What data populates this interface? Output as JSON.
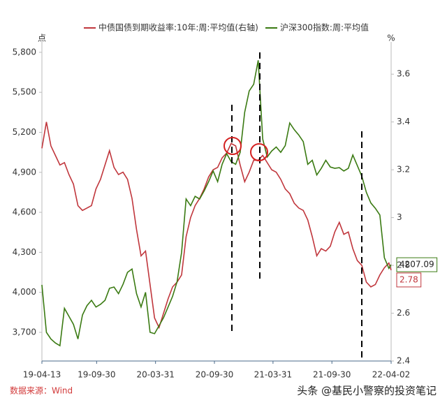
{
  "chart_data": {
    "type": "line",
    "ylabel": "点",
    "y2label": "%",
    "source": "数据来源：Wind",
    "watermark": "头条 @基民小警察的投资笔记",
    "x": [
      "19-04-13",
      "19-04-27",
      "19-05-11",
      "19-05-25",
      "19-06-08",
      "19-06-22",
      "19-07-06",
      "19-07-20",
      "19-08-03",
      "19-08-17",
      "19-08-31",
      "19-09-14",
      "19-09-28",
      "19-10-12",
      "19-10-26",
      "19-11-09",
      "19-11-23",
      "19-12-07",
      "19-12-21",
      "20-01-04",
      "20-01-18",
      "20-02-01",
      "20-02-15",
      "20-02-29",
      "20-03-14",
      "20-03-28",
      "20-04-11",
      "20-04-25",
      "20-05-09",
      "20-05-23",
      "20-06-06",
      "20-06-20",
      "20-07-04",
      "20-07-18",
      "20-08-01",
      "20-08-15",
      "20-08-29",
      "20-09-12",
      "20-09-26",
      "20-10-10",
      "20-10-24",
      "20-11-07",
      "20-11-21",
      "20-12-05",
      "20-12-19",
      "21-01-02",
      "21-01-16",
      "21-01-30",
      "21-02-13",
      "21-02-27",
      "21-03-13",
      "21-03-27",
      "21-04-10",
      "21-04-24",
      "21-05-08",
      "21-05-22",
      "21-06-05",
      "21-06-19",
      "21-07-03",
      "21-07-17",
      "21-07-31",
      "21-08-14",
      "21-08-28",
      "21-09-11",
      "21-09-25",
      "21-10-09",
      "21-10-23",
      "21-11-06",
      "21-11-20",
      "21-12-04",
      "21-12-18",
      "22-01-01",
      "22-01-15",
      "22-01-29",
      "22-02-12",
      "22-02-26",
      "22-03-12",
      "22-03-26",
      "22-04-02"
    ],
    "series": [
      {
        "name": "中债国债到期收益率:10年:周:平均值(右轴)",
        "color": "#c0363c",
        "axis": "y2",
        "values": [
          3.29,
          3.4,
          3.3,
          3.26,
          3.22,
          3.23,
          3.18,
          3.14,
          3.05,
          3.03,
          3.04,
          3.05,
          3.12,
          3.16,
          3.22,
          3.28,
          3.21,
          3.18,
          3.19,
          3.16,
          3.08,
          2.95,
          2.84,
          2.86,
          2.72,
          2.58,
          2.54,
          2.6,
          2.66,
          2.71,
          2.73,
          2.76,
          2.92,
          3.0,
          3.05,
          3.08,
          3.12,
          3.17,
          3.2,
          3.21,
          3.25,
          3.27,
          3.31,
          3.3,
          3.22,
          3.15,
          3.19,
          3.24,
          3.24,
          3.26,
          3.23,
          3.2,
          3.19,
          3.16,
          3.12,
          3.1,
          3.06,
          3.04,
          3.03,
          2.99,
          2.92,
          2.84,
          2.87,
          2.86,
          2.88,
          2.94,
          2.98,
          2.93,
          2.94,
          2.87,
          2.82,
          2.8,
          2.73,
          2.71,
          2.72,
          2.76,
          2.79,
          2.81,
          2.78
        ]
      },
      {
        "name": "沪深300指数:周:平均值",
        "color": "#3a7a12",
        "values": [
          4056,
          3700,
          3650,
          3620,
          3600,
          3880,
          3820,
          3760,
          3650,
          3830,
          3900,
          3940,
          3890,
          3910,
          3940,
          4030,
          4040,
          3990,
          4060,
          4150,
          4175,
          3990,
          3890,
          4000,
          3700,
          3690,
          3750,
          3810,
          3890,
          3970,
          4080,
          4300,
          4700,
          4650,
          4720,
          4700,
          4760,
          4830,
          4910,
          4830,
          4960,
          5040,
          4980,
          4960,
          5050,
          5350,
          5510,
          5560,
          5740,
          5150,
          5015,
          5060,
          5090,
          5050,
          5100,
          5270,
          5220,
          5180,
          5130,
          4960,
          4990,
          4880,
          4930,
          4990,
          4940,
          4930,
          4935,
          4910,
          4930,
          5030,
          4950,
          4870,
          4750,
          4670,
          4630,
          4580,
          4260,
          4180,
          4207.09
        ]
      }
    ],
    "xlim": [
      "19-04-13",
      "22-04-02"
    ],
    "xticks": [
      "19-04-13",
      "19-09-30",
      "20-03-31",
      "20-09-30",
      "21-03-31",
      "21-09-30",
      "22-04-02"
    ],
    "ylim": [
      3485,
      5878
    ],
    "yticks": [
      {
        "value": 3700,
        "label": "3,700"
      },
      {
        "value": 4000,
        "label": "4,000"
      },
      {
        "value": 4300,
        "label": "4,300"
      },
      {
        "value": 4600,
        "label": "4,600"
      },
      {
        "value": 4900,
        "label": "4,900"
      },
      {
        "value": 5200,
        "label": "5,200"
      },
      {
        "value": 5500,
        "label": "5,500"
      },
      {
        "value": 5800,
        "label": "5,800"
      }
    ],
    "y2lim": [
      2.4,
      3.735
    ],
    "y2ticks": [
      2.4,
      2.6,
      2.8,
      3,
      3.2,
      3.4,
      3.6
    ],
    "grid": false
  }
}
